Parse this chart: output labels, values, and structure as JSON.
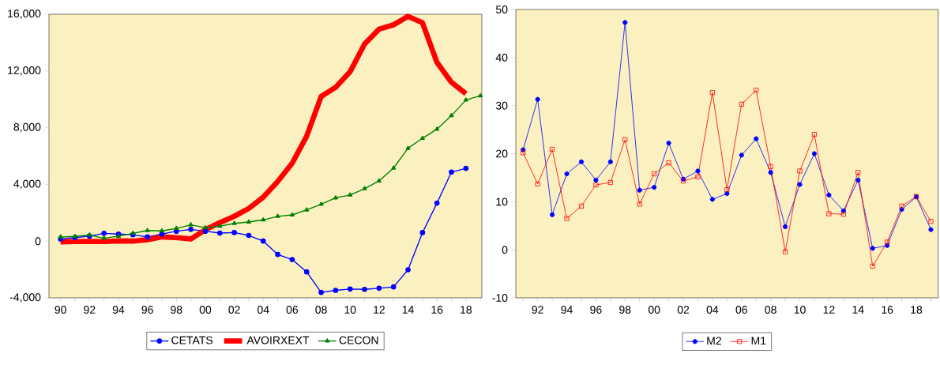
{
  "chart_data": [
    {
      "type": "line",
      "categories": [
        "90",
        null,
        "92",
        null,
        "94",
        null,
        "96",
        null,
        "98",
        null,
        "00",
        null,
        "02",
        null,
        "04",
        null,
        "06",
        null,
        "08",
        null,
        "10",
        null,
        "12",
        null,
        "14",
        null,
        "16",
        null,
        "18",
        null
      ],
      "ylim": [
        -4000,
        16000
      ],
      "yticks": [
        {
          "value": -4000,
          "label": "-4,000"
        },
        {
          "value": 0,
          "label": "0"
        },
        {
          "value": 4000,
          "label": "4,000"
        },
        {
          "value": 8000,
          "label": "8,000"
        },
        {
          "value": 12000,
          "label": "12,000"
        },
        {
          "value": 16000,
          "label": "16,000"
        }
      ],
      "legend": "bottom",
      "grid": false,
      "series": [
        {
          "name": "CETATS",
          "color": "#0000ff",
          "marker": "circle",
          "values": [
            150,
            250,
            350,
            550,
            500,
            450,
            300,
            500,
            700,
            830,
            700,
            570,
            600,
            400,
            0,
            -940,
            -1300,
            -2170,
            -3620,
            -3470,
            -3380,
            -3400,
            -3320,
            -3230,
            -2020,
            600,
            2680,
            4870,
            5130,
            null
          ]
        },
        {
          "name": "AVOIRXEXT",
          "color": "#ff0000",
          "marker": "none",
          "values": [
            -50,
            -30,
            -20,
            -30,
            20,
            0,
            100,
            300,
            250,
            150,
            800,
            1300,
            1750,
            2300,
            3100,
            4200,
            5500,
            7400,
            10200,
            10850,
            11950,
            13900,
            14950,
            15250,
            15850,
            15400,
            12600,
            11200,
            10400,
            null
          ]
        },
        {
          "name": "CECON",
          "color": "#008000",
          "marker": "triangle",
          "values": [
            300,
            330,
            430,
            200,
            350,
            550,
            750,
            720,
            900,
            1150,
            950,
            1050,
            1250,
            1350,
            1500,
            1750,
            1850,
            2200,
            2600,
            3050,
            3250,
            3700,
            4250,
            5150,
            6550,
            7250,
            7900,
            8850,
            9950,
            10250
          ]
        }
      ]
    },
    {
      "type": "line",
      "categories": [
        null,
        "92",
        null,
        "94",
        null,
        "96",
        null,
        "98",
        null,
        "00",
        null,
        "02",
        null,
        "04",
        null,
        "06",
        null,
        "08",
        null,
        "10",
        null,
        "12",
        null,
        "14",
        null,
        "16",
        null,
        "18",
        null
      ],
      "ylim": [
        -10,
        50
      ],
      "yticks": [
        -10,
        0,
        10,
        20,
        30,
        40,
        50
      ],
      "legend": "bottom",
      "grid": false,
      "series": [
        {
          "name": "M2",
          "color": "#0000ff",
          "marker": "circle",
          "values": [
            20.8,
            31.3,
            7.3,
            15.8,
            18.3,
            14.5,
            18.3,
            47.3,
            12.4,
            13.0,
            22.2,
            14.7,
            16.4,
            10.5,
            11.7,
            19.7,
            23.1,
            16.1,
            4.8,
            13.6,
            20.0,
            11.4,
            8.1,
            14.5,
            0.3,
            0.9,
            8.4,
            11.0,
            4.2
          ]
        },
        {
          "name": "M1",
          "color": "#ff0000",
          "marker": "square",
          "values": [
            20.2,
            13.7,
            20.9,
            6.5,
            9.1,
            13.5,
            14.0,
            22.9,
            9.5,
            15.8,
            18.1,
            14.3,
            15.2,
            32.7,
            12.5,
            30.3,
            33.2,
            17.3,
            -0.4,
            16.4,
            24.0,
            7.5,
            7.4,
            16.1,
            -3.4,
            1.6,
            9.1,
            11.1,
            5.9
          ]
        }
      ]
    }
  ]
}
